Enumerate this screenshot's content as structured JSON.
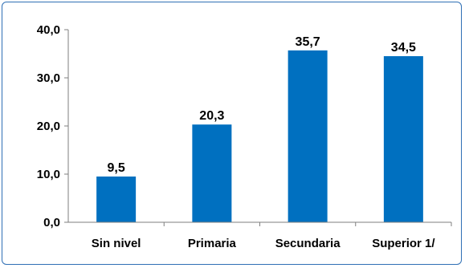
{
  "chart_data": {
    "type": "bar",
    "categories": [
      "Sin nivel",
      "Primaria",
      "Secundaria",
      "Superior 1/"
    ],
    "values": [
      9.5,
      20.3,
      35.7,
      34.5
    ],
    "value_labels": [
      "9,5",
      "20,3",
      "35,7",
      "34,5"
    ],
    "yticks": [
      "0,0",
      "10,0",
      "20,0",
      "30,0",
      "40,0"
    ],
    "ytick_values": [
      0,
      10,
      20,
      30,
      40
    ],
    "ylim": [
      0,
      40
    ],
    "title": "",
    "xlabel": "",
    "ylabel": "",
    "grid": false,
    "legend": "none",
    "bar_color": "#0070c0",
    "axis_color": "#7f7f7f",
    "border_color": "#2f6fb5"
  }
}
